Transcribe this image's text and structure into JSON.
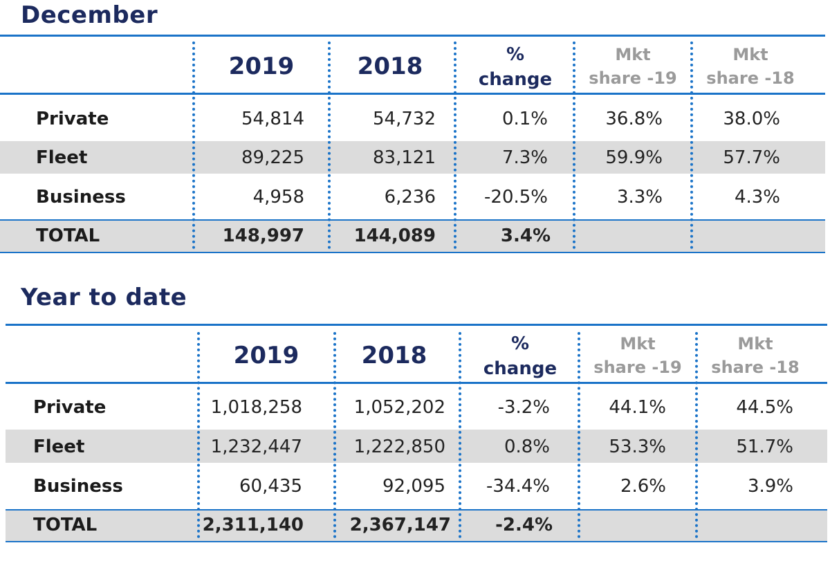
{
  "tables": [
    {
      "title": "December",
      "headers": {
        "col1": "2019",
        "col2": "2018",
        "pct_line1": "%",
        "pct_line2": "change",
        "mkt19_line1": "Mkt",
        "mkt19_line2": "share -19",
        "mkt18_line1": "Mkt",
        "mkt18_line2": "share -18"
      },
      "rows": [
        {
          "label": "Private",
          "v2019": "54,814",
          "v2018": "54,732",
          "change": "0.1%",
          "share19": "36.8%",
          "share18": "38.0%"
        },
        {
          "label": "Fleet",
          "v2019": "89,225",
          "v2018": "83,121",
          "change": "7.3%",
          "share19": "59.9%",
          "share18": "57.7%"
        },
        {
          "label": "Business",
          "v2019": "4,958",
          "v2018": "6,236",
          "change": "-20.5%",
          "share19": "3.3%",
          "share18": "4.3%"
        }
      ],
      "total": {
        "label": "TOTAL",
        "v2019": "148,997",
        "v2018": "144,089",
        "change": "3.4%"
      }
    },
    {
      "title": "Year to date",
      "headers": {
        "col1": "2019",
        "col2": "2018",
        "pct_line1": "%",
        "pct_line2": "change",
        "mkt19_line1": "Mkt",
        "mkt19_line2": "share -19",
        "mkt18_line1": "Mkt",
        "mkt18_line2": "share -18"
      },
      "rows": [
        {
          "label": "Private",
          "v2019": "1,018,258",
          "v2018": "1,052,202",
          "change": "-3.2%",
          "share19": "44.1%",
          "share18": "44.5%"
        },
        {
          "label": "Fleet",
          "v2019": "1,232,447",
          "v2018": "1,222,850",
          "change": "0.8%",
          "share19": "53.3%",
          "share18": "51.7%"
        },
        {
          "label": "Business",
          "v2019": "60,435",
          "v2018": "92,095",
          "change": "-34.4%",
          "share19": "2.6%",
          "share18": "3.9%"
        }
      ],
      "total": {
        "label": "TOTAL",
        "v2019": "2,311,140",
        "v2018": "2,367,147",
        "change": "-2.4%"
      }
    }
  ]
}
